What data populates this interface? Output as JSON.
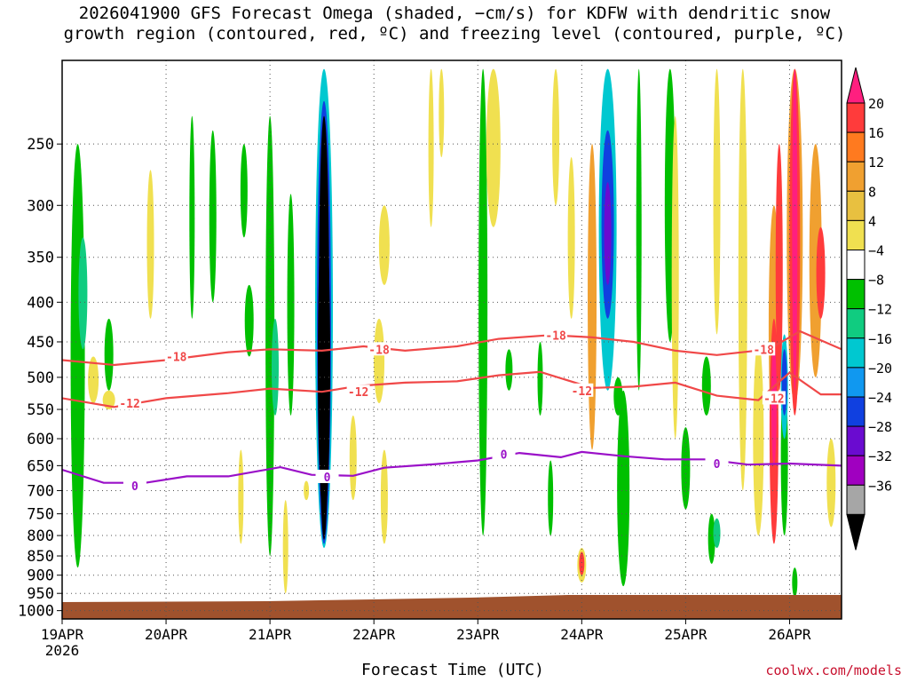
{
  "title": "2026041900 GFS Forecast Omega (shaded, −cm/s) for KDFW with dendritic snow\ngrowth region (contoured, red, ºC) and freezing level (contoured, purple, ºC)",
  "xlabel": "Forecast Time (UTC)",
  "credit": "coolwx.com/models",
  "chart_data": {
    "type": "heatmap",
    "title": "2026041900 GFS Forecast Omega (shaded, −cm/s) for KDFW with dendritic snow growth region (contoured, red, ºC) and freezing level (contoured, purple, ºC)",
    "xlabel": "Forecast Time (UTC)",
    "ylabel": "",
    "x_ticks": [
      {
        "label": "19APR",
        "sublabel": "2026",
        "day": 0
      },
      {
        "label": "20APR",
        "day": 1
      },
      {
        "label": "21APR",
        "day": 2
      },
      {
        "label": "22APR",
        "day": 3
      },
      {
        "label": "23APR",
        "day": 4
      },
      {
        "label": "24APR",
        "day": 5
      },
      {
        "label": "25APR",
        "day": 6
      },
      {
        "label": "26APR",
        "day": 7
      }
    ],
    "xlim_days": [
      0,
      7.5
    ],
    "y_ticks": [
      250,
      300,
      350,
      400,
      450,
      500,
      550,
      600,
      650,
      700,
      750,
      800,
      850,
      900,
      950,
      1000
    ],
    "ylim_hPa": [
      1025,
      195
    ],
    "y_scale": "log-pressure",
    "grid": true,
    "colorbar": {
      "labels": [
        "20",
        "16",
        "12",
        "8",
        "4",
        "−4",
        "−8",
        "−12",
        "−16",
        "−20",
        "−24",
        "−28",
        "−32",
        "−36"
      ],
      "colors": [
        "#ff1f7f",
        "#ff3b3b",
        "#ff7a1f",
        "#f0a030",
        "#e8c040",
        "#f0e050",
        "#ffffff",
        "#00c000",
        "#10cc80",
        "#00c8d0",
        "#1098f0",
        "#1040e0",
        "#6a0bd0",
        "#a000c0",
        "#a6a6a6",
        "#000000"
      ]
    },
    "contours": [
      {
        "name": "-18",
        "color": "#f04848",
        "points": [
          [
            0,
            475
          ],
          [
            0.5,
            482
          ],
          [
            1,
            475
          ],
          [
            1.6,
            464
          ],
          [
            2,
            460
          ],
          [
            2.5,
            462
          ],
          [
            2.9,
            456
          ],
          [
            3.3,
            462
          ],
          [
            3.8,
            456
          ],
          [
            4.2,
            446
          ],
          [
            4.7,
            441
          ],
          [
            5.1,
            444
          ],
          [
            5.5,
            450
          ],
          [
            5.9,
            462
          ],
          [
            6.3,
            468
          ],
          [
            6.8,
            460
          ],
          [
            7.1,
            436
          ],
          [
            7.5,
            460
          ]
        ],
        "labels": [
          {
            "text": "-18",
            "x": 1.1,
            "p": 470
          },
          {
            "text": "-18",
            "x": 3.05,
            "p": 460
          },
          {
            "text": "-18",
            "x": 4.75,
            "p": 441
          },
          {
            "text": "-18",
            "x": 6.75,
            "p": 460
          }
        ]
      },
      {
        "name": "-12",
        "color": "#f04848",
        "points": [
          [
            0,
            532
          ],
          [
            0.5,
            546
          ],
          [
            1,
            532
          ],
          [
            1.6,
            524
          ],
          [
            2,
            517
          ],
          [
            2.5,
            522
          ],
          [
            2.85,
            513
          ],
          [
            3.3,
            508
          ],
          [
            3.8,
            506
          ],
          [
            4.2,
            497
          ],
          [
            4.6,
            492
          ],
          [
            5.1,
            516
          ],
          [
            5.5,
            514
          ],
          [
            5.9,
            508
          ],
          [
            6.3,
            528
          ],
          [
            6.7,
            535
          ],
          [
            7.0,
            493
          ],
          [
            7.3,
            526
          ],
          [
            7.5,
            526
          ]
        ],
        "labels": [
          {
            "text": "-12",
            "x": 0.65,
            "p": 540
          },
          {
            "text": "-12",
            "x": 2.85,
            "p": 522
          },
          {
            "text": "-12",
            "x": 5.0,
            "p": 520
          },
          {
            "text": "-12",
            "x": 6.85,
            "p": 532
          }
        ]
      },
      {
        "name": "0",
        "color": "#9a10c8",
        "points": [
          [
            0,
            658
          ],
          [
            0.4,
            684
          ],
          [
            0.8,
            684
          ],
          [
            1.2,
            671
          ],
          [
            1.6,
            671
          ],
          [
            2.1,
            653
          ],
          [
            2.4,
            668
          ],
          [
            2.8,
            670
          ],
          [
            3.1,
            654
          ],
          [
            3.6,
            647
          ],
          [
            4.0,
            640
          ],
          [
            4.4,
            626
          ],
          [
            4.8,
            634
          ],
          [
            5.0,
            624
          ],
          [
            5.4,
            632
          ],
          [
            5.8,
            638
          ],
          [
            6.2,
            638
          ],
          [
            6.6,
            648
          ],
          [
            7.0,
            646
          ],
          [
            7.5,
            650
          ]
        ],
        "labels": [
          {
            "text": "0",
            "x": 0.7,
            "p": 690
          },
          {
            "text": "0",
            "x": 2.55,
            "p": 672
          },
          {
            "text": "0",
            "x": 4.25,
            "p": 628
          },
          {
            "text": "0",
            "x": 6.3,
            "p": 646
          }
        ]
      }
    ],
    "omega_features": [
      {
        "time_day": 2.52,
        "p_top_hPa": 200,
        "p_bottom_hPa": 830,
        "peak_value": -36
      },
      {
        "time_day": 5.25,
        "p_top_hPa": 200,
        "p_bottom_hPa": 520,
        "peak_value": -28
      },
      {
        "time_day": 6.85,
        "p_top_hPa": 420,
        "p_bottom_hPa": 820,
        "peak_value": -24
      },
      {
        "time_day": 7.05,
        "p_top_hPa": 200,
        "p_bottom_hPa": 520,
        "peak_value": 20
      }
    ]
  }
}
